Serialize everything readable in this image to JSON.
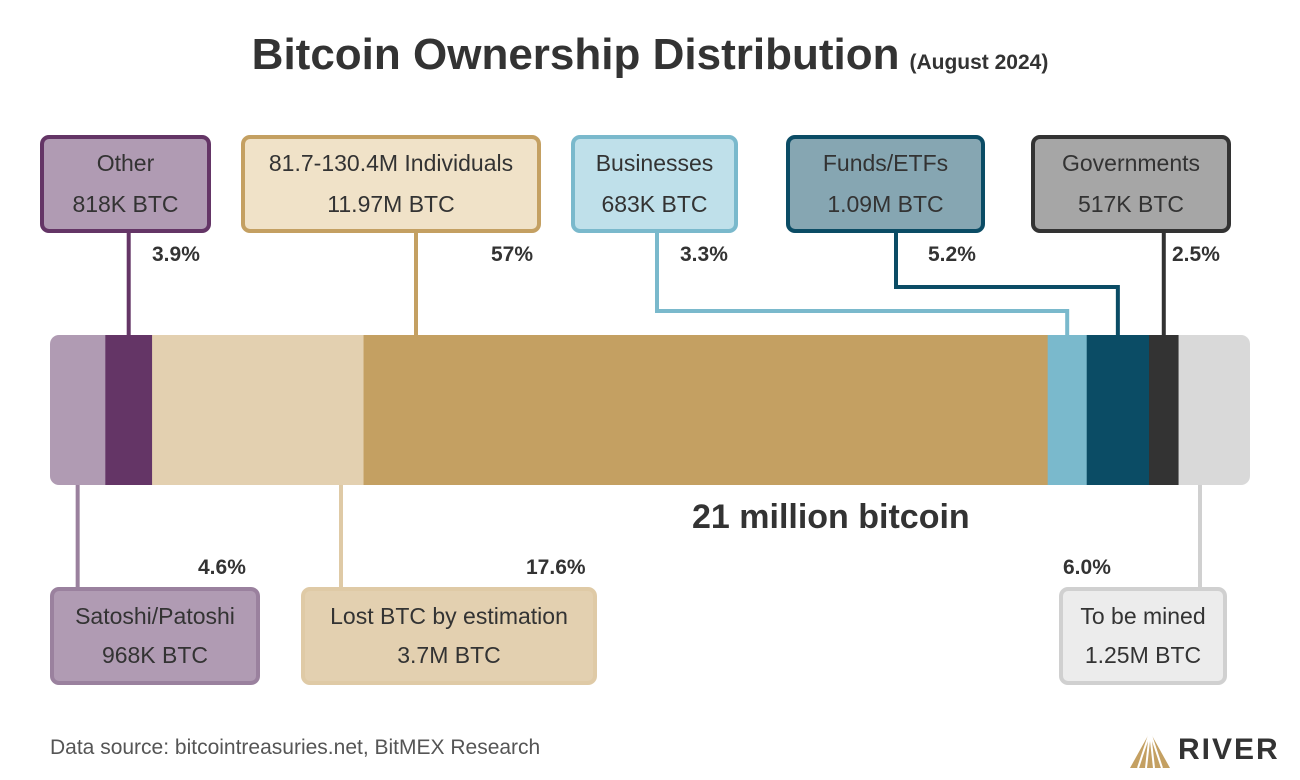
{
  "title": "Bitcoin Ownership Distribution",
  "subtitle": "(August 2024)",
  "total_label": "21 million bitcoin",
  "footer": "Data source: bitcointreasuries.net, BitMEX Research",
  "logo_text": "RIVER",
  "chart_data": {
    "type": "bar",
    "orientation": "horizontal-stacked",
    "unit": "BTC",
    "segments": [
      {
        "name": "Satoshi/Patoshi",
        "value_label": "968K BTC",
        "value": 968000,
        "percent": 4.6,
        "percent_label": "4.6%",
        "color": "#b09bb3"
      },
      {
        "name": "Other",
        "value_label": "818K BTC",
        "value": 818000,
        "percent": 3.9,
        "percent_label": "3.9%",
        "color": "#643566"
      },
      {
        "name": "Lost BTC by estimation",
        "value_label": "3.7M BTC",
        "value": 3700000,
        "percent": 17.6,
        "percent_label": "17.6%",
        "color": "#e3d0b0"
      },
      {
        "name": "81.7-130.4M Individuals",
        "value_label": "11.97M BTC",
        "value": 11970000,
        "percent": 57,
        "percent_label": "57%",
        "color": "#c4a062"
      },
      {
        "name": "Businesses",
        "value_label": "683K BTC",
        "value": 683000,
        "percent": 3.3,
        "percent_label": "3.3%",
        "color": "#7ab9cc"
      },
      {
        "name": "Funds/ETFs",
        "value_label": "1.09M BTC",
        "value": 1090000,
        "percent": 5.2,
        "percent_label": "5.2%",
        "color": "#0b4c65"
      },
      {
        "name": "Governments",
        "value_label": "517K BTC",
        "value": 517000,
        "percent": 2.5,
        "percent_label": "2.5%",
        "color": "#333333"
      },
      {
        "name": "To be mined",
        "value_label": "1.25M BTC",
        "value": 1250000,
        "percent": 6.0,
        "percent_label": "6.0%",
        "color": "#d9d9d9"
      }
    ]
  },
  "colors": {
    "other_border": "#643566",
    "other_fill": "#b09bb3",
    "individuals_border": "#c4a062",
    "individuals_fill": "#f0e2c8",
    "businesses_border": "#7ab9cc",
    "businesses_fill": "#bfe0ea",
    "funds_border": "#0b4c65",
    "funds_fill": "#86a6b2",
    "governments_border": "#333333",
    "governments_fill": "#a6a6a6",
    "satoshi_border": "#9a819e",
    "satoshi_fill": "#b09bb3",
    "lost_border": "#dfcaa6",
    "lost_fill": "#e3d0b0",
    "mined_border": "#d0d0d0",
    "mined_fill": "#ececec"
  }
}
